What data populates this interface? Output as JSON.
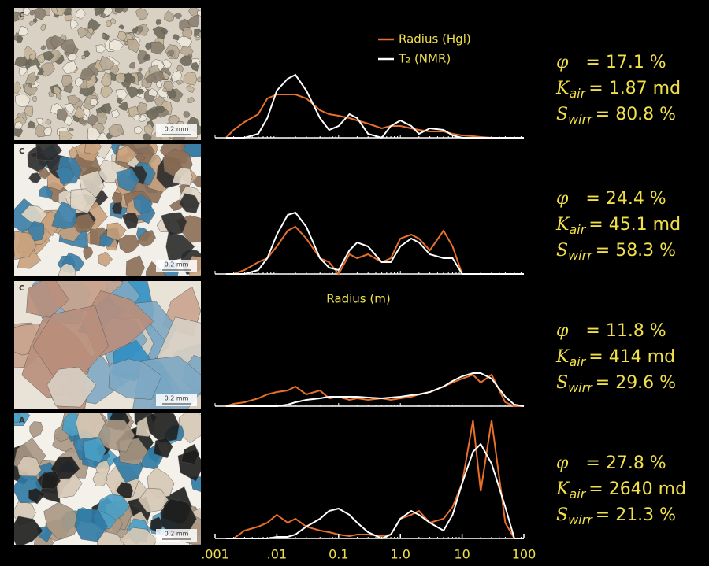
{
  "chart_data": [
    {
      "type": "line",
      "xlog": true,
      "xlim": [
        0.001,
        100
      ],
      "ylim": [
        0,
        160
      ],
      "legend": true,
      "photo": {
        "label": "C",
        "scale": "0.2 mm"
      },
      "x": [
        0.0015,
        0.002,
        0.003,
        0.005,
        0.007,
        0.01,
        0.015,
        0.02,
        0.03,
        0.05,
        0.07,
        0.1,
        0.15,
        0.2,
        0.3,
        0.5,
        0.7,
        1,
        1.5,
        2,
        3,
        5,
        7,
        10,
        15,
        20,
        30,
        50,
        70,
        100
      ],
      "series": [
        {
          "name": "Radius (Hgl)",
          "color": "#e8702a",
          "values": [
            0,
            10,
            20,
            30,
            50,
            55,
            55,
            55,
            50,
            35,
            30,
            28,
            25,
            22,
            18,
            12,
            15,
            15,
            12,
            10,
            8,
            8,
            5,
            3,
            2,
            1,
            0,
            0,
            0,
            0
          ]
        },
        {
          "name": "T₂ (NMR)",
          "color": "#ffffff",
          "values": [
            0,
            0,
            0,
            5,
            25,
            60,
            75,
            80,
            60,
            25,
            10,
            15,
            30,
            25,
            5,
            0,
            15,
            22,
            15,
            5,
            12,
            10,
            3,
            0,
            0,
            0,
            0,
            0,
            0,
            0
          ]
        }
      ],
      "annotations": [
        {
          "symbol": "φ",
          "text": "= 17.1 %"
        },
        {
          "symbol": "K",
          "subscript": "air",
          "text": "= 1.87 md"
        },
        {
          "symbol": "S",
          "subscript": "wirr",
          "text": "= 80.8 %"
        }
      ]
    },
    {
      "type": "line",
      "xlog": true,
      "xlim": [
        0.001,
        100
      ],
      "ylim": [
        0,
        160
      ],
      "photo": {
        "label": "C",
        "scale": "0.2 mm"
      },
      "x": [
        0.0015,
        0.002,
        0.003,
        0.005,
        0.007,
        0.01,
        0.015,
        0.02,
        0.03,
        0.05,
        0.07,
        0.1,
        0.15,
        0.2,
        0.3,
        0.5,
        0.7,
        1,
        1.5,
        2,
        3,
        5,
        7,
        10,
        15,
        20,
        30,
        50,
        70,
        100
      ],
      "series": [
        {
          "name": "Radius (Hgl)",
          "color": "#e8702a",
          "values": [
            0,
            0,
            5,
            15,
            20,
            35,
            55,
            60,
            45,
            20,
            15,
            0,
            25,
            20,
            25,
            15,
            20,
            45,
            50,
            45,
            30,
            55,
            35,
            0,
            0,
            0,
            0,
            0,
            0,
            0
          ]
        },
        {
          "name": "T₂ (NMR)",
          "color": "#ffffff",
          "values": [
            0,
            0,
            0,
            5,
            20,
            50,
            75,
            78,
            60,
            20,
            8,
            5,
            30,
            40,
            35,
            15,
            15,
            35,
            45,
            40,
            25,
            20,
            20,
            0,
            0,
            0,
            0,
            0,
            0,
            0
          ]
        }
      ],
      "annotations": [
        {
          "symbol": "φ",
          "text": "= 24.4 %"
        },
        {
          "symbol": "K",
          "subscript": "air",
          "text": "= 45.1 md"
        },
        {
          "symbol": "S",
          "subscript": "wirr",
          "text": "= 58.3 %"
        }
      ]
    },
    {
      "type": "line",
      "xlog": true,
      "xlim": [
        0.001,
        100
      ],
      "ylim": [
        0,
        160
      ],
      "photo": {
        "label": "C",
        "scale": "0.2 mm"
      },
      "x": [
        0.0015,
        0.002,
        0.003,
        0.005,
        0.007,
        0.01,
        0.015,
        0.02,
        0.03,
        0.05,
        0.07,
        0.1,
        0.15,
        0.2,
        0.3,
        0.5,
        0.7,
        1,
        1.5,
        2,
        3,
        5,
        7,
        10,
        15,
        20,
        30,
        50,
        70,
        100
      ],
      "series": [
        {
          "name": "Radius (Hgl)",
          "color": "#e8702a",
          "values": [
            0,
            3,
            5,
            10,
            15,
            18,
            20,
            25,
            15,
            20,
            10,
            12,
            8,
            10,
            8,
            10,
            8,
            10,
            12,
            15,
            18,
            25,
            30,
            35,
            40,
            30,
            40,
            5,
            0,
            0
          ]
        },
        {
          "name": "T₂ (NMR)",
          "color": "#ffffff",
          "values": [
            0,
            0,
            0,
            0,
            0,
            0,
            2,
            5,
            8,
            10,
            12,
            12,
            12,
            12,
            11,
            10,
            11,
            12,
            14,
            15,
            18,
            25,
            32,
            38,
            42,
            42,
            35,
            12,
            2,
            0
          ]
        }
      ],
      "annotations": [
        {
          "symbol": "φ",
          "text": "= 11.8 %"
        },
        {
          "symbol": "K",
          "subscript": "air",
          "text": "= 414 md"
        },
        {
          "symbol": "S",
          "subscript": "wirr",
          "text": "= 29.6 %"
        }
      ]
    },
    {
      "type": "line",
      "xlog": true,
      "xlim": [
        0.001,
        100
      ],
      "ylim": [
        0,
        160
      ],
      "xlabel": "Radius (m)",
      "xticks": [
        {
          "value": 0.001,
          "label": ".001"
        },
        {
          "value": 0.01,
          "label": ".01"
        },
        0.1,
        {
          "value": 1,
          "label": "1.0"
        },
        10,
        100
      ],
      "photo": {
        "label": "A",
        "scale": "0.2 mm"
      },
      "x": [
        0.0015,
        0.002,
        0.003,
        0.005,
        0.007,
        0.01,
        0.015,
        0.02,
        0.03,
        0.05,
        0.07,
        0.1,
        0.15,
        0.2,
        0.3,
        0.5,
        0.7,
        1,
        1.5,
        2,
        3,
        5,
        7,
        10,
        15,
        20,
        30,
        50,
        70,
        100
      ],
      "series": [
        {
          "name": "Radius (Hgl)",
          "color": "#e8702a",
          "values": [
            0,
            0,
            10,
            15,
            20,
            30,
            20,
            25,
            15,
            10,
            8,
            5,
            3,
            5,
            5,
            3,
            5,
            25,
            30,
            35,
            20,
            25,
            40,
            70,
            150,
            60,
            150,
            20,
            0,
            0
          ]
        },
        {
          "name": "T₂ (NMR)",
          "color": "#ffffff",
          "values": [
            0,
            0,
            0,
            0,
            0,
            2,
            2,
            5,
            15,
            25,
            35,
            38,
            30,
            20,
            8,
            0,
            5,
            25,
            35,
            30,
            20,
            10,
            30,
            70,
            110,
            120,
            95,
            40,
            0,
            0
          ]
        }
      ],
      "annotations": [
        {
          "symbol": "φ",
          "text": "= 27.8 %"
        },
        {
          "symbol": "K",
          "subscript": "air",
          "text": "= 2640 md"
        },
        {
          "symbol": "S",
          "subscript": "wirr",
          "text": "= 21.3 %"
        }
      ]
    }
  ]
}
